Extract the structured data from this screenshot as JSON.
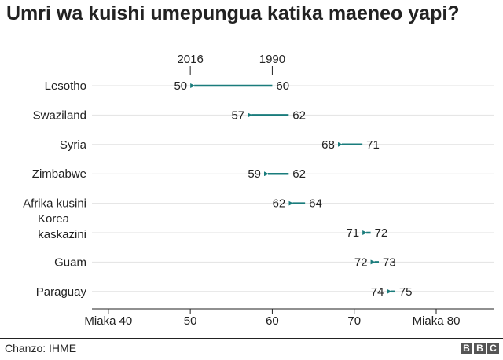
{
  "title": "Umri wa kuishi umepungua katika maeneo yapi?",
  "source": "Chanzo: IHME",
  "logo": [
    "B",
    "B",
    "C"
  ],
  "colors": {
    "arrow": "#1a7c7c",
    "text": "#222222",
    "grid": "#e2e2e2",
    "axis": "#222222"
  },
  "chart_data": {
    "type": "dot-arrow",
    "title": "Umri wa kuishi umepungua katika maeneo yapi?",
    "series_labels": {
      "start": "1990",
      "end": "2016"
    },
    "xlim": [
      38,
      87
    ],
    "x_ticks": [
      {
        "value": 40,
        "label": "Miaka 40"
      },
      {
        "value": 50,
        "label": "50"
      },
      {
        "value": 60,
        "label": "60"
      },
      {
        "value": 70,
        "label": "70"
      },
      {
        "value": 80,
        "label": "Miaka 80"
      }
    ],
    "rows": [
      {
        "label": [
          "Lesotho"
        ],
        "y1990": 60,
        "y2016": 50
      },
      {
        "label": [
          "Swaziland"
        ],
        "y1990": 62,
        "y2016": 57
      },
      {
        "label": [
          "Syria"
        ],
        "y1990": 71,
        "y2016": 68
      },
      {
        "label": [
          "Zimbabwe"
        ],
        "y1990": 62,
        "y2016": 59
      },
      {
        "label": [
          "Afrika kusini"
        ],
        "y1990": 64,
        "y2016": 62
      },
      {
        "label": [
          "Korea",
          "kaskazini"
        ],
        "y1990": 72,
        "y2016": 71
      },
      {
        "label": [
          "Guam"
        ],
        "y1990": 73,
        "y2016": 72
      },
      {
        "label": [
          "Paraguay"
        ],
        "y1990": 75,
        "y2016": 74
      }
    ]
  }
}
